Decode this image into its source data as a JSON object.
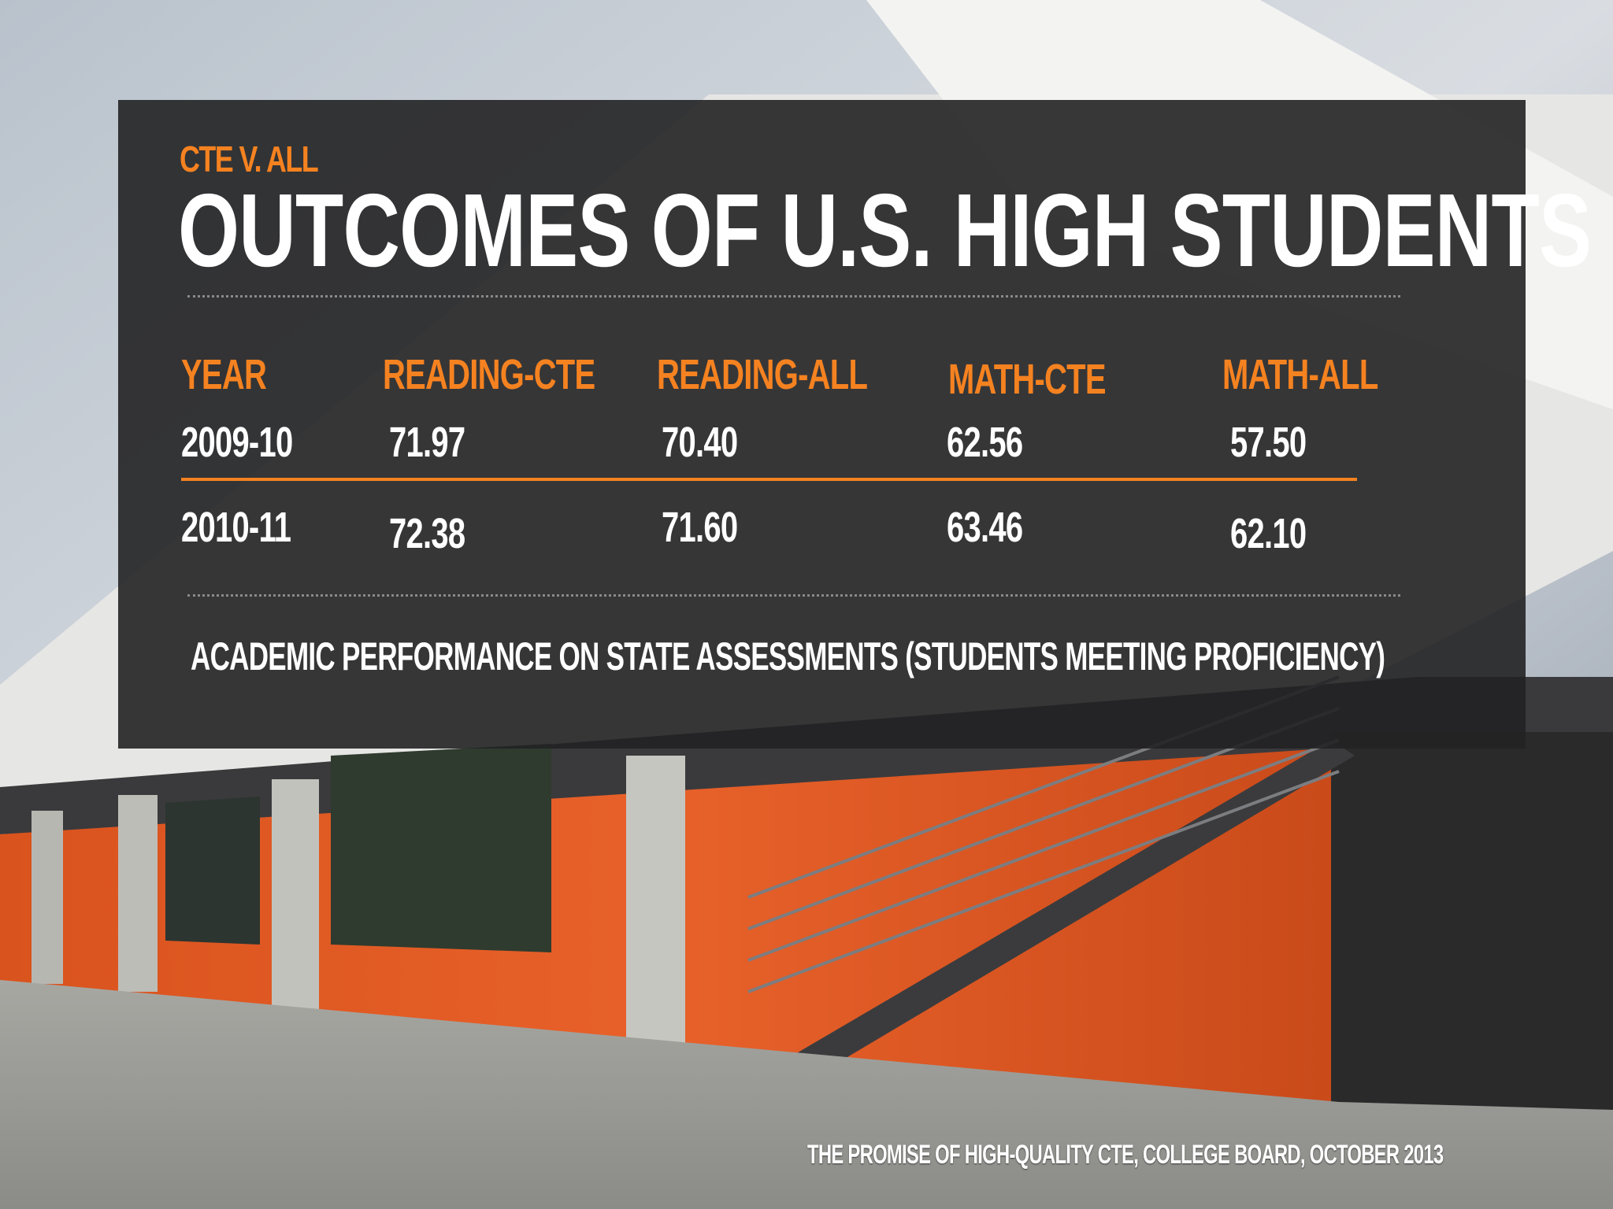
{
  "slide": {
    "kicker": "CTE V. ALL",
    "title": "OUTCOMES OF U.S. HIGH STUDENTS",
    "caption": "ACADEMIC PERFORMANCE ON STATE ASSESSMENTS (STUDENTS MEETING PROFICIENCY)",
    "source": "THE PROMISE OF HIGH-QUALITY CTE, COLLEGE BOARD, OCTOBER 2013"
  },
  "table": {
    "headers": [
      "YEAR",
      "READING-CTE",
      "READING-ALL",
      "MATH-CTE",
      "MATH-ALL"
    ],
    "rows": [
      [
        "2009-10",
        "71.97",
        "70.40",
        "62.56",
        "57.50"
      ],
      [
        "2010-11",
        "72.38",
        "71.60",
        "63.46",
        "62.10"
      ]
    ]
  },
  "colors": {
    "accent": "#f58220",
    "panel": "#222224",
    "text": "#ffffff"
  }
}
